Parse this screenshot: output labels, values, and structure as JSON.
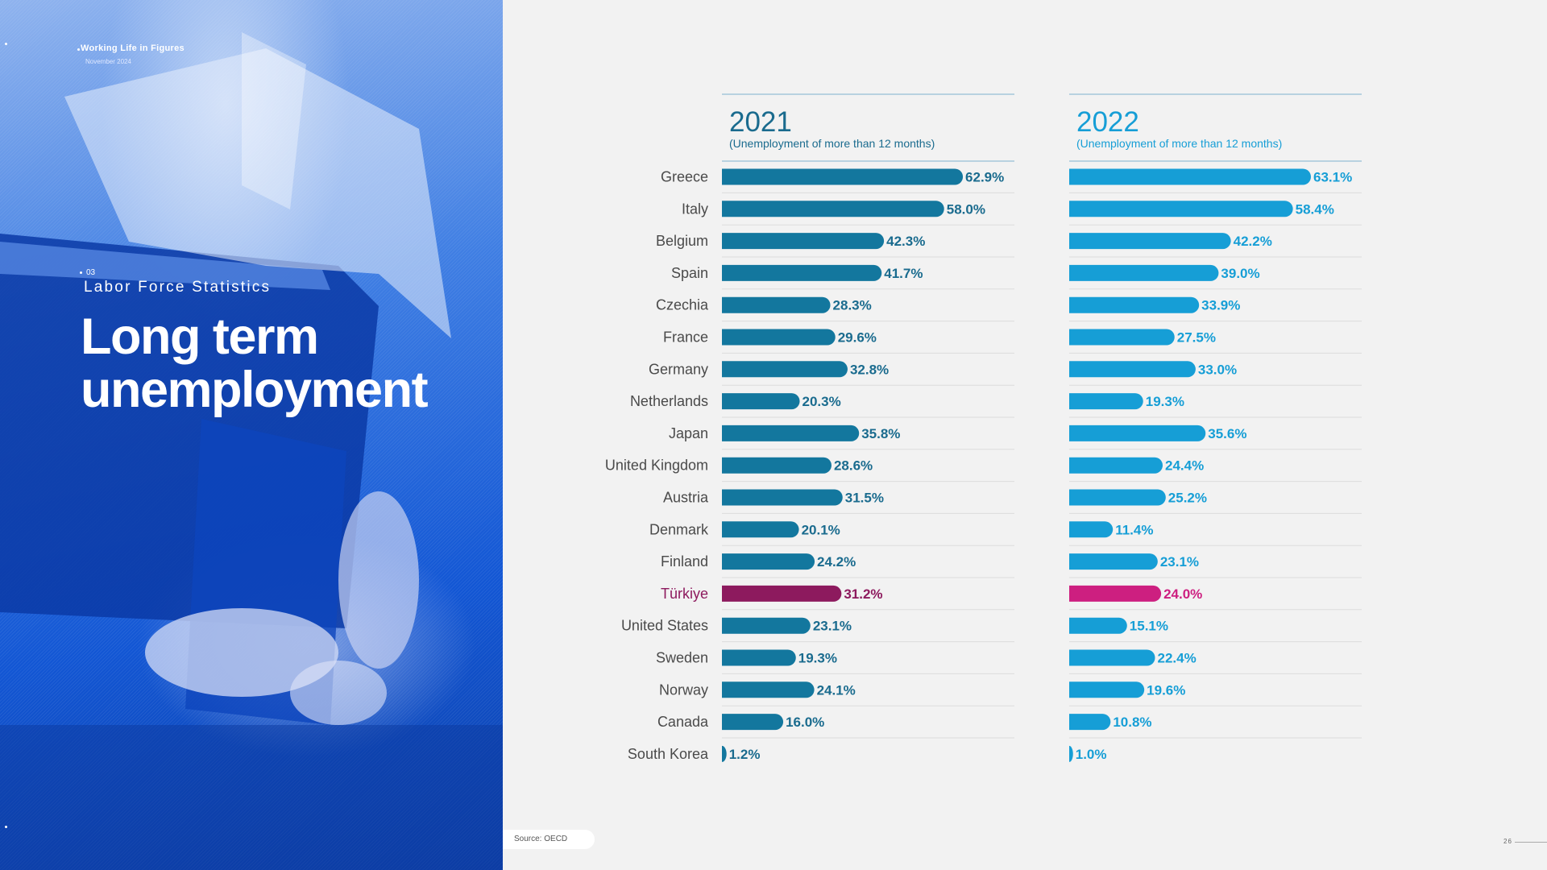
{
  "header": {
    "publication": "Working Life in Figures",
    "date": "November 2024"
  },
  "section": {
    "number": "03",
    "label": "Labor Force Statistics",
    "title_line1": "Long term",
    "title_line2": "unemployment"
  },
  "footer": {
    "source": "Source: OECD",
    "page": "26"
  },
  "colors": {
    "series_2021": "#13779e",
    "series_2022": "#169ed6",
    "highlight_2021": "#8d1a5e",
    "highlight_2022": "#cd1f80",
    "panel_blue": "#1565d8"
  },
  "chart_data": [
    {
      "type": "bar",
      "orientation": "horizontal",
      "title": "2021",
      "subtitle": "(Unemployment of more than 12 months)",
      "unit": "%",
      "highlight": "Türkiye",
      "categories": [
        "Greece",
        "Italy",
        "Belgium",
        "Spain",
        "Czechia",
        "France",
        "Germany",
        "Netherlands",
        "Japan",
        "United Kingdom",
        "Austria",
        "Denmark",
        "Finland",
        "Türkiye",
        "United States",
        "Sweden",
        "Norway",
        "Canada",
        "South Korea"
      ],
      "values": [
        62.9,
        58.0,
        42.3,
        41.7,
        28.3,
        29.6,
        32.8,
        20.3,
        35.8,
        28.6,
        31.5,
        20.1,
        24.2,
        31.2,
        23.1,
        19.3,
        24.1,
        16.0,
        1.2
      ],
      "labels": [
        "62.9%",
        "58.0%",
        "42.3%",
        "41.7%",
        "28.3%",
        "29.6%",
        "32.8%",
        "20.3%",
        "35.8%",
        "28.6%",
        "31.5%",
        "20.1%",
        "24.2%",
        "31.2%",
        "23.1%",
        "19.3%",
        "24.1%",
        "16.0%",
        "1.2%"
      ]
    },
    {
      "type": "bar",
      "orientation": "horizontal",
      "title": "2022",
      "subtitle": "(Unemployment of more than 12 months)",
      "unit": "%",
      "highlight": "Türkiye",
      "categories": [
        "Greece",
        "Italy",
        "Belgium",
        "Spain",
        "Czechia",
        "France",
        "Germany",
        "Netherlands",
        "Japan",
        "United Kingdom",
        "Austria",
        "Denmark",
        "Finland",
        "Türkiye",
        "United States",
        "Sweden",
        "Norway",
        "Canada",
        "South Korea"
      ],
      "values": [
        63.1,
        58.4,
        42.2,
        39.0,
        33.9,
        27.5,
        33.0,
        19.3,
        35.6,
        24.4,
        25.2,
        11.4,
        23.1,
        24.0,
        15.1,
        22.4,
        19.6,
        10.8,
        1.0
      ],
      "labels": [
        "63.1%",
        "58.4%",
        "42.2%",
        "39.0%",
        "33.9%",
        "27.5%",
        "33.0%",
        "19.3%",
        "35.6%",
        "24.4%",
        "25.2%",
        "11.4%",
        "23.1%",
        "24.0%",
        "15.1%",
        "22.4%",
        "19.6%",
        "10.8%",
        "1.0%"
      ]
    }
  ]
}
